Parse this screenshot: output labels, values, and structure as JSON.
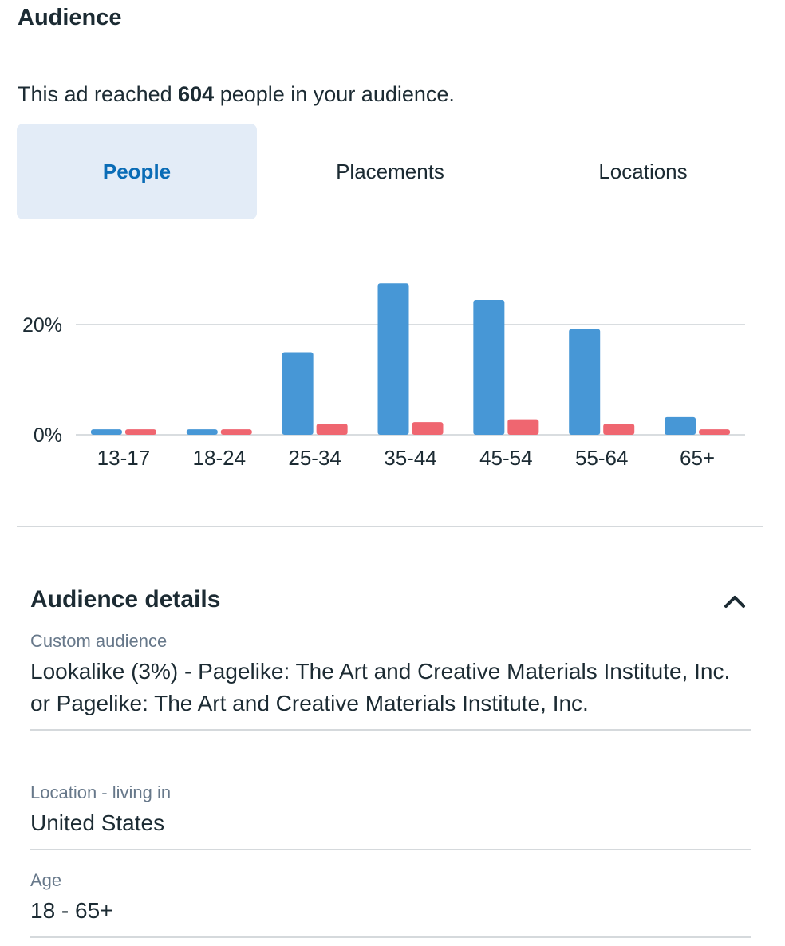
{
  "section": {
    "title": "Audience",
    "reach_prefix": "This ad reached ",
    "reach_count": "604",
    "reach_suffix": " people in your audience."
  },
  "tabs": [
    {
      "label": "People",
      "active": true
    },
    {
      "label": "Placements",
      "active": false
    },
    {
      "label": "Locations",
      "active": false
    }
  ],
  "colors": {
    "series_a": "#4797d6",
    "series_b": "#ef6670",
    "grid": "#d9dde0",
    "accent": "#0a6cb6"
  },
  "chart_data": {
    "type": "bar",
    "categories": [
      "13-17",
      "18-24",
      "25-34",
      "35-44",
      "45-54",
      "55-64",
      "65+"
    ],
    "series": [
      {
        "values": [
          1.0,
          1.0,
          15.0,
          27.5,
          24.5,
          19.2,
          3.2
        ]
      },
      {
        "values": [
          1.0,
          1.0,
          2.0,
          2.3,
          2.8,
          2.0,
          1.0
        ]
      }
    ],
    "yticks": [
      "0%",
      "20%"
    ],
    "ylim": [
      0,
      30
    ],
    "grid": true
  },
  "details": {
    "title": "Audience details",
    "chevron_icon": "chevron-up-icon",
    "fields": [
      {
        "label": "Custom audience",
        "value": "Lookalike (3%) - Pagelike: The Art and Creative Materials Institute, Inc. or Pagelike: The Art and Creative Materials Institute, Inc."
      },
      {
        "label": "Location - living in",
        "value": "United States"
      },
      {
        "label": "Age",
        "value": "18 - 65+"
      }
    ]
  }
}
